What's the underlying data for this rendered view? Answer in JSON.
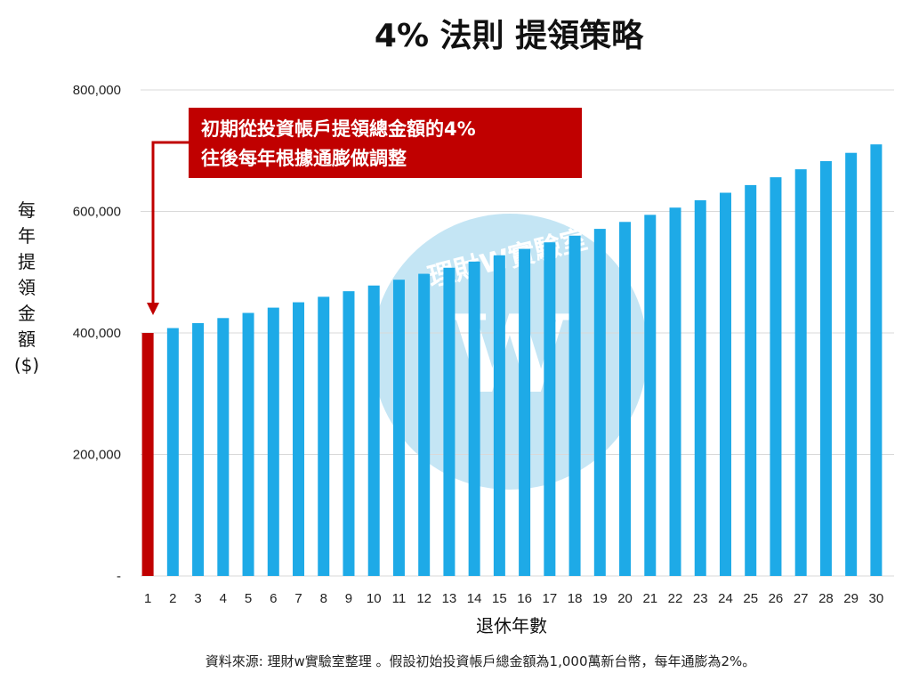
{
  "chart_data": {
    "type": "bar",
    "title": "4% 法則 提領策略",
    "xlabel": "退休年數",
    "ylabel": "每年提領金額($)",
    "ylabel_chars": [
      "每",
      "年",
      "提",
      "領",
      "金",
      "額",
      "($)"
    ],
    "categories": [
      "1",
      "2",
      "3",
      "4",
      "5",
      "6",
      "7",
      "8",
      "9",
      "10",
      "11",
      "12",
      "13",
      "14",
      "15",
      "16",
      "17",
      "18",
      "19",
      "20",
      "21",
      "22",
      "23",
      "24",
      "25",
      "26",
      "27",
      "28",
      "29",
      "30"
    ],
    "values": [
      400000,
      408000,
      416160,
      424483,
      432973,
      441632,
      450465,
      459474,
      468664,
      478037,
      487598,
      497350,
      507297,
      517443,
      527792,
      538347,
      549114,
      560097,
      571298,
      582724,
      594379,
      606266,
      618392,
      630759,
      643375,
      656242,
      669367,
      682755,
      696410,
      710338
    ],
    "ylim": [
      0,
      800000
    ],
    "yticks": [
      {
        "value": 0,
        "label": "-"
      },
      {
        "value": 200000,
        "label": "200,000"
      },
      {
        "value": 400000,
        "label": "400,000"
      },
      {
        "value": 600000,
        "label": "600,000"
      },
      {
        "value": 800000,
        "label": "800,000"
      }
    ],
    "grid": true,
    "highlight_index": 0,
    "colors": {
      "bar": "#1eaae7",
      "highlight": "#c00000",
      "grid": "#d9d9d9",
      "annotation_bg": "#c00000"
    },
    "annotation": {
      "lines": [
        "初期從投資帳戶提領總金額的4%",
        "往後每年根據通膨做調整"
      ]
    },
    "watermark": "理財W實驗室",
    "footnote": "資料來源: 理財w實驗室整理 。假設初始投資帳戶總金額為1,000萬新台幣，每年通膨為2%。"
  }
}
